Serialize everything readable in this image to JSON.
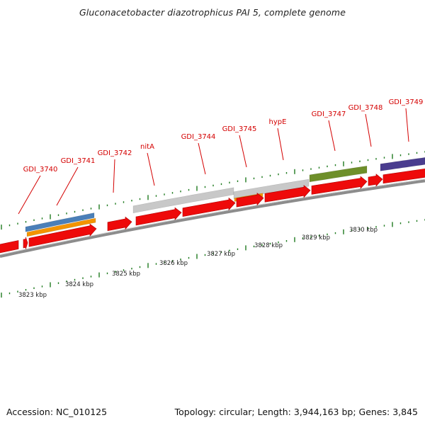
{
  "header": {
    "title": "Gluconacetobacter diazotrophicus PAI 5, complete genome"
  },
  "footer": {
    "accession": "Accession: NC_010125",
    "summary": "Topology: circular; Length: 3,944,163 bp; Genes: 3,845"
  },
  "genes": [
    {
      "name": "GDI_3740"
    },
    {
      "name": "GDI_3741"
    },
    {
      "name": "GDI_3742"
    },
    {
      "name": "nitA"
    },
    {
      "name": "GDI_3744"
    },
    {
      "name": "GDI_3745"
    },
    {
      "name": "hypE"
    },
    {
      "name": "GDI_3747"
    },
    {
      "name": "GDI_3748"
    },
    {
      "name": "GDI_3749"
    }
  ],
  "scale": {
    "unit": "kbp",
    "ticks": [
      "3823 kbp",
      "3824 kbp",
      "3825 kbp",
      "3826 kbp",
      "3827 kbp",
      "3828 kbp",
      "3829 kbp",
      "3830 kbp"
    ]
  },
  "colors": {
    "cds_red": "#ee0a0a",
    "backbone_gray": "#8c8c8c",
    "gene_gray": "#c8c8c8",
    "blue_feature": "#4a7fb8",
    "orange_feature": "#f39400",
    "green_feature": "#6e8f2a",
    "purple_feature": "#4a3d8f",
    "tick_green": "#1e7a1e",
    "label_red": "#d40000"
  }
}
